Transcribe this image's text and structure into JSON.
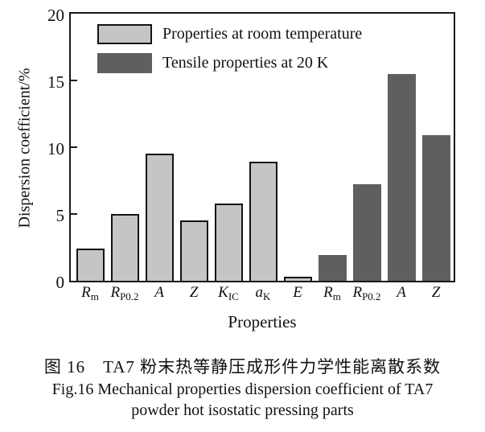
{
  "figure": {
    "caption_zh": "图 16　TA7 粉末热等静压成形件力学性能离散系数",
    "caption_en_line1": "Fig.16 Mechanical properties dispersion coefficient of TA7",
    "caption_en_line2": "powder hot isostatic pressing parts"
  },
  "chart_data": {
    "type": "bar",
    "title": "",
    "xlabel": "Properties",
    "ylabel": "Dispersion coefficient/%",
    "ylim": [
      0,
      20
    ],
    "yticks": [
      0,
      5,
      10,
      15,
      20
    ],
    "grid": false,
    "legend_position": "top-left-inside",
    "colors": {
      "room_fill": "#c5c5c5",
      "cryo_fill": "#5f5f5f",
      "bar_border": "#141414",
      "frame": "#1a1a1a"
    },
    "legend": [
      {
        "name": "Properties at room temperature",
        "series": "room"
      },
      {
        "name": "Tensile properties at 20 K",
        "series": "cryo"
      }
    ],
    "bars": [
      {
        "label_main": "R",
        "label_sub": "m",
        "value": 2.4,
        "series": "room"
      },
      {
        "label_main": "R",
        "label_sub": "P0.2",
        "value": 5.0,
        "series": "room"
      },
      {
        "label_main": "A",
        "label_sub": "",
        "value": 9.5,
        "series": "room"
      },
      {
        "label_main": "Z",
        "label_sub": "",
        "value": 4.5,
        "series": "room"
      },
      {
        "label_main": "K",
        "label_sub": "IC",
        "value": 5.8,
        "series": "room"
      },
      {
        "label_main": "a",
        "label_sub": "K",
        "value": 8.9,
        "series": "room"
      },
      {
        "label_main": "E",
        "label_sub": "",
        "value": 0.3,
        "series": "room"
      },
      {
        "label_main": "R",
        "label_sub": "m",
        "value": 1.9,
        "series": "cryo"
      },
      {
        "label_main": "R",
        "label_sub": "P0.2",
        "value": 7.2,
        "series": "cryo"
      },
      {
        "label_main": "A",
        "label_sub": "",
        "value": 15.5,
        "series": "cryo"
      },
      {
        "label_main": "Z",
        "label_sub": "",
        "value": 10.9,
        "series": "cryo"
      }
    ]
  }
}
